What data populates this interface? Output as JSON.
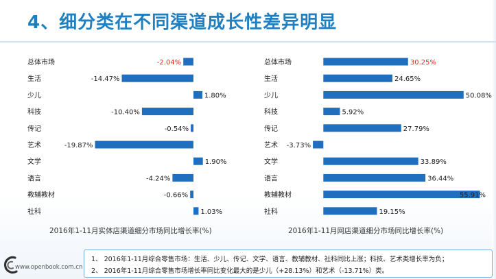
{
  "slide": {
    "title": "4、细分类在不同渠道成长性差异明显",
    "footer_url": "www.openbook.com.cn",
    "notes": [
      "1、 2016年1-11月综合零售市场：生活、少儿、传记、文学、语言、教辅教材、社科同比上涨；科技、艺术类增长率为负；",
      "2、 2016年1-11月综合零售市场增长率同比变化最大的是少儿（+28.13%）和艺术（-13.71%）类。"
    ]
  },
  "colors": {
    "bar": "#1f6fbe",
    "highlight": "#e2231a",
    "title": "#1f7fbf"
  },
  "chart_data": [
    {
      "type": "bar",
      "orientation": "horizontal",
      "title": "2016年1-11月实体店渠道细分市场同比增长率(%)",
      "categories": [
        "总体市场",
        "生活",
        "少儿",
        "科技",
        "传记",
        "艺术",
        "文学",
        "语言",
        "教辅教材",
        "社科"
      ],
      "values": [
        -2.04,
        -14.47,
        1.8,
        -10.4,
        -0.54,
        -19.87,
        1.9,
        -4.24,
        -0.66,
        1.03
      ],
      "labels": [
        "-2.04%",
        "-14.47%",
        "1.80%",
        "-10.40%",
        "-0.54%",
        "-19.87%",
        "1.90%",
        "-4.24%",
        "-0.66%",
        "1.03%"
      ],
      "highlight_index": 0,
      "xlim": [
        -20.5,
        2.5
      ],
      "grid": false,
      "legend": "none"
    },
    {
      "type": "bar",
      "orientation": "horizontal",
      "title": "2016年1-11月网店渠道细分市场同比增长率(%)",
      "categories": [
        "总体市场",
        "生活",
        "少儿",
        "科技",
        "传记",
        "艺术",
        "文学",
        "语言",
        "教辅教材",
        "社科"
      ],
      "values": [
        30.25,
        24.65,
        50.08,
        5.92,
        27.79,
        -3.73,
        33.89,
        36.44,
        55.91,
        19.15
      ],
      "labels": [
        "30.25%",
        "24.65%",
        "50.08%",
        "5.92%",
        "27.79%",
        "-3.73%",
        "33.89%",
        "36.44%",
        "55.91%",
        "19.15%"
      ],
      "highlight_index": 0,
      "xlim": [
        -4,
        56
      ],
      "grid": false,
      "legend": "none"
    }
  ]
}
